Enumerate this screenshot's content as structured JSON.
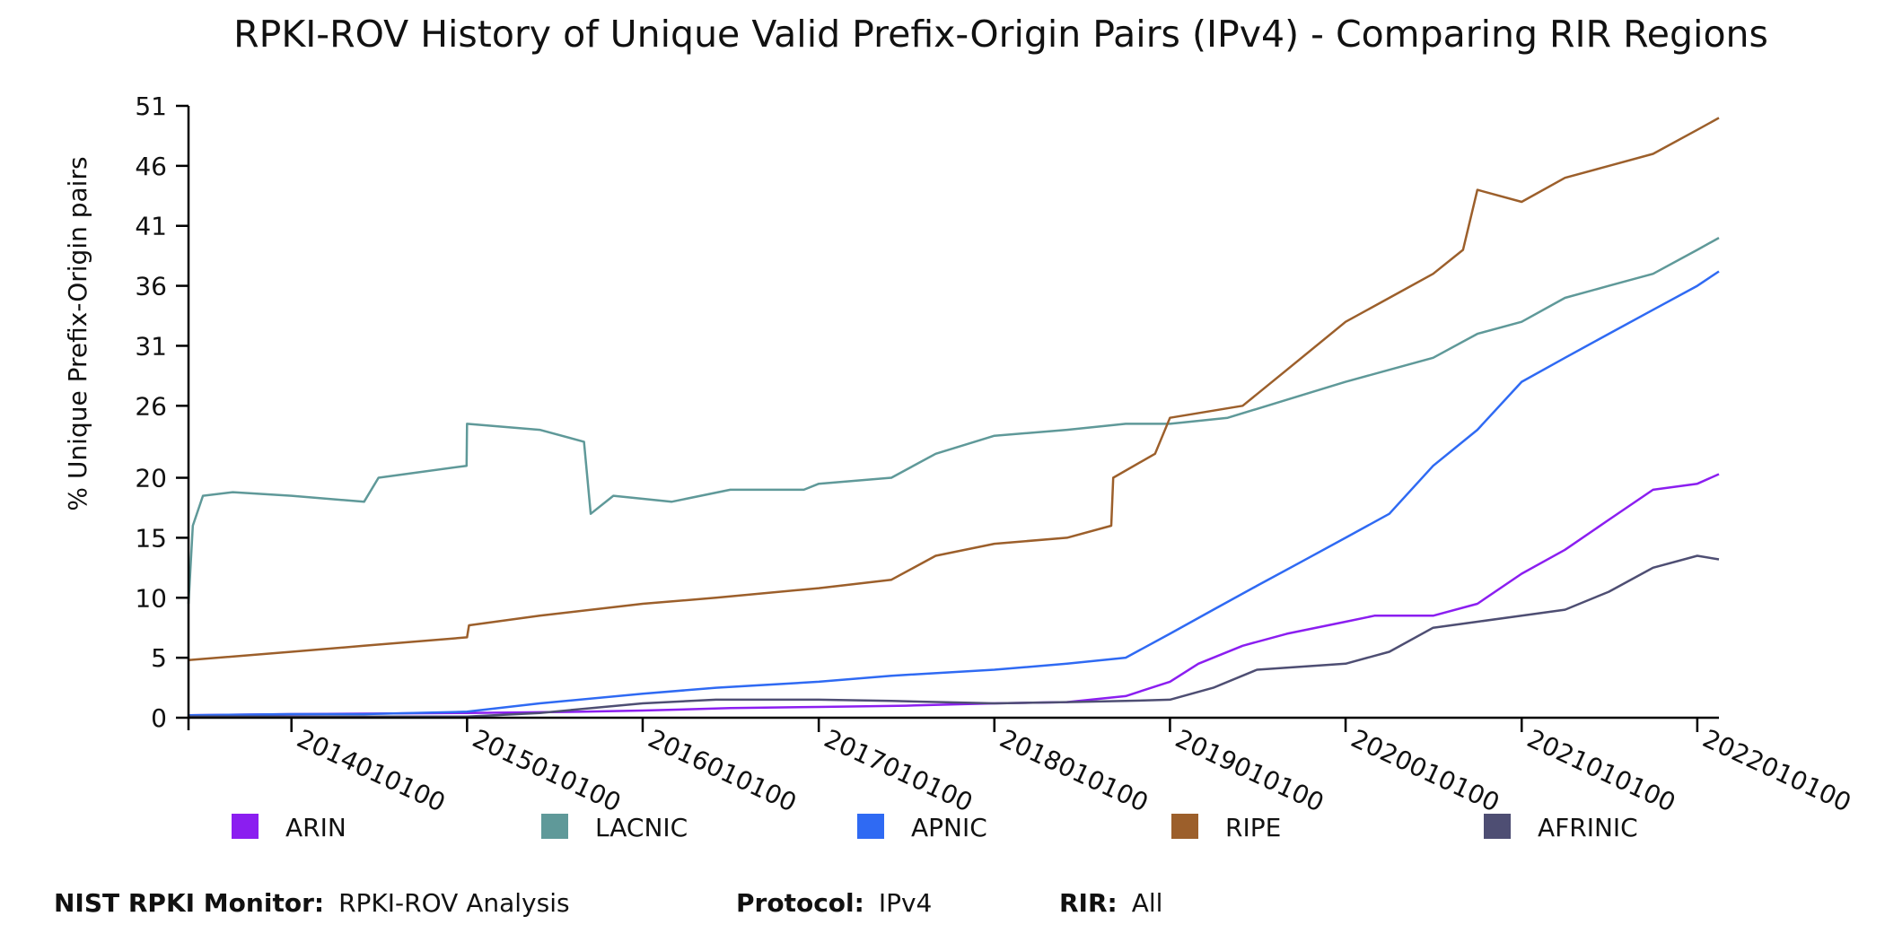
{
  "chart_data": {
    "type": "line",
    "title": "RPKI-ROV History of Unique Valid Prefix-Origin Pairs (IPv4) - Comparing RIR Regions",
    "xlabel": "",
    "ylabel": "% Unique Prefix-Origin pairs",
    "ylim": [
      0,
      51
    ],
    "yticks": [
      0,
      5,
      10,
      15,
      20,
      26,
      31,
      36,
      41,
      46,
      51
    ],
    "xlim": [
      "2013-06-01",
      "2022-02-15"
    ],
    "xticks": [
      {
        "label": "2014010100",
        "date": "2014-01-01"
      },
      {
        "label": "2015010100",
        "date": "2015-01-01"
      },
      {
        "label": "2016010100",
        "date": "2016-01-01"
      },
      {
        "label": "2017010100",
        "date": "2017-01-01"
      },
      {
        "label": "2018010100",
        "date": "2018-01-01"
      },
      {
        "label": "2019010100",
        "date": "2019-01-01"
      },
      {
        "label": "2020010100",
        "date": "2020-01-01"
      },
      {
        "label": "2021010100",
        "date": "2021-01-01"
      },
      {
        "label": "2022010100",
        "date": "2022-01-01"
      }
    ],
    "grid": false,
    "legend_position": "bottom",
    "series": [
      {
        "name": "ARIN",
        "color": "#8b1ef0",
        "x": [
          "2013-06-01",
          "2014-01-01",
          "2015-01-01",
          "2015-09-01",
          "2016-01-01",
          "2016-07-01",
          "2017-01-01",
          "2017-07-01",
          "2018-01-01",
          "2018-06-01",
          "2018-10-01",
          "2019-01-01",
          "2019-03-01",
          "2019-06-01",
          "2019-09-01",
          "2020-01-01",
          "2020-03-01",
          "2020-07-01",
          "2020-10-01",
          "2021-01-01",
          "2021-04-01",
          "2021-07-01",
          "2021-10-01",
          "2022-01-01",
          "2022-02-15"
        ],
        "y": [
          0.2,
          0.3,
          0.4,
          0.5,
          0.6,
          0.8,
          0.9,
          1.0,
          1.2,
          1.3,
          1.8,
          3.0,
          4.5,
          6.0,
          7.0,
          8.0,
          8.5,
          8.5,
          9.5,
          12.0,
          14.0,
          16.5,
          19.0,
          19.5,
          20.3
        ]
      },
      {
        "name": "LACNIC",
        "color": "#5f9999",
        "x": [
          "2013-06-01",
          "2013-06-10",
          "2013-07-01",
          "2013-09-01",
          "2014-01-01",
          "2014-06-01",
          "2014-07-01",
          "2014-12-31",
          "2015-01-01",
          "2015-06-01",
          "2015-09-01",
          "2015-09-15",
          "2015-11-01",
          "2016-03-01",
          "2016-07-01",
          "2016-12-01",
          "2017-01-01",
          "2017-06-01",
          "2017-09-01",
          "2018-01-01",
          "2018-06-01",
          "2018-10-01",
          "2019-01-01",
          "2019-05-01",
          "2019-09-01",
          "2020-01-01",
          "2020-04-01",
          "2020-07-01",
          "2020-10-01",
          "2021-01-01",
          "2021-04-01",
          "2021-07-01",
          "2021-10-01",
          "2022-01-01",
          "2022-02-15"
        ],
        "y": [
          9.5,
          16.0,
          18.5,
          18.8,
          18.5,
          18.0,
          20.0,
          21.0,
          24.5,
          24.0,
          23.0,
          17.0,
          18.5,
          18.0,
          19.0,
          19.0,
          19.5,
          20.0,
          22.0,
          23.5,
          24.0,
          24.5,
          24.5,
          25.0,
          26.5,
          28.0,
          29.0,
          30.0,
          32.0,
          33.0,
          35.0,
          36.0,
          37.0,
          39.0,
          40.0
        ]
      },
      {
        "name": "APNIC",
        "color": "#2f6af3",
        "x": [
          "2013-06-01",
          "2014-01-01",
          "2014-06-01",
          "2015-01-01",
          "2015-06-01",
          "2016-01-01",
          "2016-06-01",
          "2017-01-01",
          "2017-06-01",
          "2018-01-01",
          "2018-06-01",
          "2018-10-01",
          "2019-01-01",
          "2019-04-01",
          "2019-07-01",
          "2019-10-01",
          "2020-01-01",
          "2020-04-01",
          "2020-07-01",
          "2020-10-01",
          "2021-01-01",
          "2021-04-01",
          "2021-07-01",
          "2021-10-01",
          "2022-01-01",
          "2022-02-15"
        ],
        "y": [
          0.2,
          0.3,
          0.3,
          0.5,
          1.2,
          2.0,
          2.5,
          3.0,
          3.5,
          4.0,
          4.5,
          5.0,
          7.0,
          9.0,
          11.0,
          13.0,
          15.0,
          17.0,
          21.0,
          24.0,
          28.0,
          30.0,
          32.0,
          34.0,
          36.0,
          37.2
        ]
      },
      {
        "name": "RIPE",
        "color": "#9c5f2b",
        "x": [
          "2013-06-01",
          "2014-01-01",
          "2014-06-01",
          "2015-01-01",
          "2015-01-05",
          "2015-06-01",
          "2016-01-01",
          "2016-06-01",
          "2017-01-01",
          "2017-06-01",
          "2017-09-01",
          "2018-01-01",
          "2018-06-01",
          "2018-09-01",
          "2018-09-05",
          "2018-12-01",
          "2019-01-01",
          "2019-06-01",
          "2019-09-01",
          "2020-01-01",
          "2020-04-01",
          "2020-07-01",
          "2020-09-01",
          "2020-10-01",
          "2021-01-01",
          "2021-04-01",
          "2021-07-01",
          "2021-10-01",
          "2022-01-01",
          "2022-02-15"
        ],
        "y": [
          4.8,
          5.5,
          6.0,
          6.7,
          7.7,
          8.5,
          9.5,
          10.0,
          10.8,
          11.5,
          13.5,
          14.5,
          15.0,
          16.0,
          20.0,
          22.0,
          25.0,
          26.0,
          29.0,
          33.0,
          35.0,
          37.0,
          39.0,
          44.0,
          43.0,
          45.0,
          46.0,
          47.0,
          49.0,
          50.0
        ]
      },
      {
        "name": "AFRINIC",
        "color": "#4e4e73",
        "x": [
          "2013-06-01",
          "2014-01-01",
          "2015-01-01",
          "2015-06-01",
          "2016-01-01",
          "2016-06-01",
          "2017-01-01",
          "2017-06-01",
          "2018-01-01",
          "2018-06-01",
          "2018-10-01",
          "2019-01-01",
          "2019-04-01",
          "2019-07-01",
          "2020-01-01",
          "2020-04-01",
          "2020-07-01",
          "2020-10-01",
          "2021-01-01",
          "2021-04-01",
          "2021-07-01",
          "2021-10-01",
          "2022-01-01",
          "2022-02-15"
        ],
        "y": [
          0.1,
          0.1,
          0.1,
          0.4,
          1.2,
          1.5,
          1.5,
          1.4,
          1.2,
          1.3,
          1.4,
          1.5,
          2.5,
          4.0,
          4.5,
          5.5,
          7.5,
          8.0,
          8.5,
          9.0,
          10.5,
          12.5,
          13.5,
          13.2
        ]
      }
    ]
  },
  "footer": {
    "monitor_label": "NIST RPKI Monitor:",
    "monitor_value": "RPKI-ROV Analysis",
    "protocol_label": "Protocol:",
    "protocol_value": "IPv4",
    "rir_label": "RIR:",
    "rir_value": "All"
  }
}
